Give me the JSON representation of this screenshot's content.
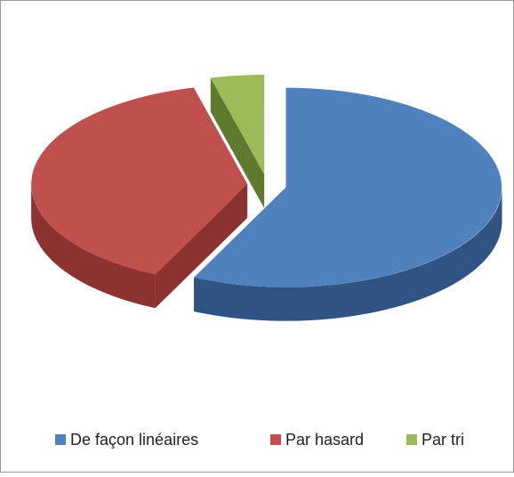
{
  "chart_data": {
    "type": "pie3d",
    "categories": [
      "De façon linéaires",
      "Par hasard",
      "Par tri"
    ],
    "values": [
      57,
      39,
      4
    ],
    "colors": [
      "#4f81bd",
      "#c0504d",
      "#9bbb59"
    ],
    "side_colors": [
      "#2f5484",
      "#8c3230",
      "#5f7a2e"
    ],
    "legend": "bottom"
  }
}
